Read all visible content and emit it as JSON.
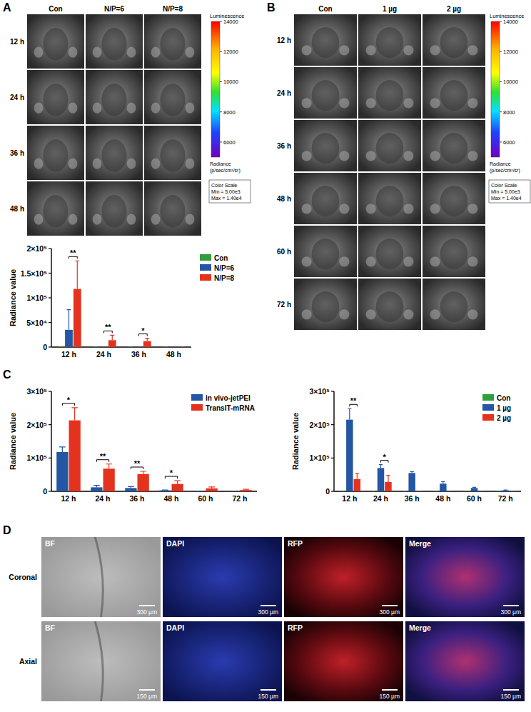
{
  "figure": {
    "panel_labels": [
      "A",
      "B",
      "C",
      "D"
    ],
    "image_panels": [
      {
        "columns": [
          "Con",
          "N/P=6",
          "N/P=8"
        ],
        "rows": [
          "12 h",
          "24 h",
          "36 h",
          "48 h"
        ]
      },
      {
        "columns": [
          "Con",
          "1 µg",
          "2 µg"
        ],
        "rows": [
          "12 h",
          "24 h",
          "36 h",
          "48 h",
          "60 h",
          "72 h"
        ]
      }
    ],
    "colorbar": {
      "title": "Luminescence",
      "range": [
        5000,
        14000
      ],
      "ticks": [
        14000,
        12000,
        10000,
        8000,
        6000
      ],
      "label": [
        "Radiance",
        "(p/sec/cm²/sr)"
      ],
      "scale_box": [
        "Color Scale",
        "Min = 5.00e3",
        "Max = 1.40e4"
      ]
    },
    "microscopy": {
      "columns": [
        "BF",
        "DAPI",
        "RFP",
        "Merge"
      ],
      "rows": [
        {
          "label": "Coronal",
          "scale_bar": "300 µm"
        },
        {
          "label": "Axial",
          "scale_bar": "150 µm"
        }
      ]
    }
  },
  "chart_data": [
    {
      "type": "bar",
      "y_label": "Radiance value",
      "categories": [
        "12 h",
        "24 h",
        "36 h",
        "48 h"
      ],
      "series": [
        {
          "name": "Con",
          "color": "#2e9e3e",
          "values": [
            0,
            0,
            0,
            0
          ],
          "errors": [
            0,
            0,
            0,
            0
          ]
        },
        {
          "name": "N/P=6",
          "color": "#2456a4",
          "values": [
            35000,
            0,
            0,
            0
          ],
          "errors": [
            41000,
            0,
            0,
            0
          ]
        },
        {
          "name": "N/P=8",
          "color": "#e4321e",
          "values": [
            118000,
            14000,
            12000,
            0
          ],
          "errors": [
            57000,
            10000,
            6000,
            0
          ]
        }
      ],
      "ylim": [
        0,
        200000
      ],
      "yticks": [
        0,
        {
          "value": 50000,
          "label": "5×10⁴"
        },
        {
          "value": 100000,
          "label": "1×10⁵"
        },
        {
          "value": 150000,
          "label": "1.5×10⁵"
        },
        {
          "value": 200000,
          "label": "2×10⁵"
        }
      ],
      "legend": "right",
      "significance": [
        {
          "category": 0,
          "series": [
            1,
            2
          ],
          "text": "**"
        },
        {
          "category": 1,
          "series": [
            1,
            2
          ],
          "text": "**"
        },
        {
          "category": 2,
          "series": [
            1,
            2
          ],
          "text": "*"
        }
      ]
    },
    {
      "type": "bar",
      "y_label": "Radiance value",
      "categories": [
        "12 h",
        "24 h",
        "36 h",
        "48 h",
        "60 h",
        "72 h"
      ],
      "series": [
        {
          "name": "Con",
          "color": "#2e9e3e",
          "values": [
            0,
            0,
            0,
            0,
            0,
            0
          ],
          "errors": [
            0,
            0,
            0,
            0,
            0,
            0
          ]
        },
        {
          "name": "1 µg",
          "color": "#2456a4",
          "values": [
            215000,
            70000,
            55000,
            23000,
            10000,
            3000
          ],
          "errors": [
            33000,
            10000,
            4000,
            6000,
            2000,
            1000
          ]
        },
        {
          "name": "2 µg",
          "color": "#e4321e",
          "values": [
            37000,
            28000,
            0,
            0,
            0,
            0
          ],
          "errors": [
            17000,
            20000,
            0,
            0,
            0,
            0
          ]
        }
      ],
      "ylim": [
        0,
        300000
      ],
      "yticks": [
        0,
        {
          "value": 100000,
          "label": "1×10⁵"
        },
        {
          "value": 200000,
          "label": "2×10⁵"
        },
        {
          "value": 300000,
          "label": "3×10⁵"
        }
      ],
      "legend": "top-right",
      "significance": [
        {
          "category": 0,
          "series": [
            1,
            2
          ],
          "text": "**"
        },
        {
          "category": 1,
          "series": [
            1,
            2
          ],
          "text": "*"
        }
      ]
    },
    {
      "type": "bar",
      "y_label": "Radiance value",
      "categories": [
        "12 h",
        "24 h",
        "36 h",
        "48 h",
        "60 h",
        "72 h"
      ],
      "series": [
        {
          "name": "in vivo-jetPEI",
          "color": "#2456a4",
          "values": [
            118000,
            12000,
            10000,
            3000,
            0,
            0
          ],
          "errors": [
            15000,
            6000,
            4000,
            1000,
            0,
            0
          ]
        },
        {
          "name": "TransIT-mRNA",
          "color": "#e4321e",
          "values": [
            213000,
            68000,
            52000,
            22000,
            9000,
            4000
          ],
          "errors": [
            38000,
            14000,
            8000,
            10000,
            4000,
            2000
          ]
        }
      ],
      "ylim": [
        0,
        300000
      ],
      "yticks": [
        0,
        {
          "value": 100000,
          "label": "1×10⁵"
        },
        {
          "value": 200000,
          "label": "2×10⁵"
        },
        {
          "value": 300000,
          "label": "3×10⁵"
        }
      ],
      "legend": "top-right",
      "significance": [
        {
          "category": 0,
          "series": [
            0,
            1
          ],
          "text": "*"
        },
        {
          "category": 1,
          "series": [
            0,
            1
          ],
          "text": "**"
        },
        {
          "category": 2,
          "series": [
            0,
            1
          ],
          "text": "**"
        },
        {
          "category": 3,
          "series": [
            0,
            1
          ],
          "text": "*"
        }
      ]
    }
  ]
}
